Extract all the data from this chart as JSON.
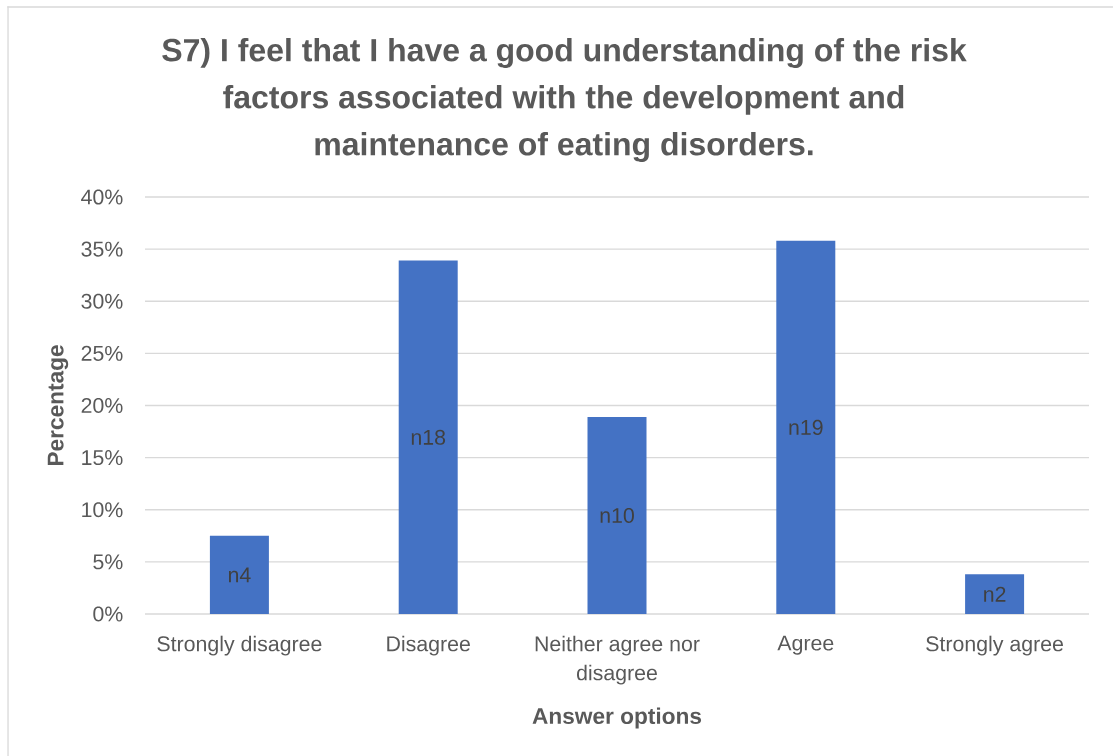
{
  "chart_data": {
    "type": "bar",
    "title": "S7) I feel that I have a good understanding of the risk factors associated with the development and maintenance of eating disorders.",
    "xlabel": "Answer options",
    "ylabel": "Percentage",
    "categories": [
      "Strongly disagree",
      "Disagree",
      "Neither agree nor disagree",
      "Agree",
      "Strongly agree"
    ],
    "values": [
      7.5,
      33.9,
      18.9,
      35.8,
      3.8
    ],
    "color": "#4472c4",
    "value_labels": [
      "n4",
      "n18",
      "n10",
      "n19",
      "n2"
    ],
    "ylim": [
      0,
      40
    ],
    "yticks": [
      {
        "value": 0,
        "label": "0%"
      },
      {
        "value": 5,
        "label": "5%"
      },
      {
        "value": 10,
        "label": "10%"
      },
      {
        "value": 15,
        "label": "15%"
      },
      {
        "value": 20,
        "label": "20%"
      },
      {
        "value": 25,
        "label": "25%"
      },
      {
        "value": 30,
        "label": "30%"
      },
      {
        "value": 35,
        "label": "35%"
      },
      {
        "value": 40,
        "label": "40%"
      }
    ],
    "grid": "y"
  }
}
